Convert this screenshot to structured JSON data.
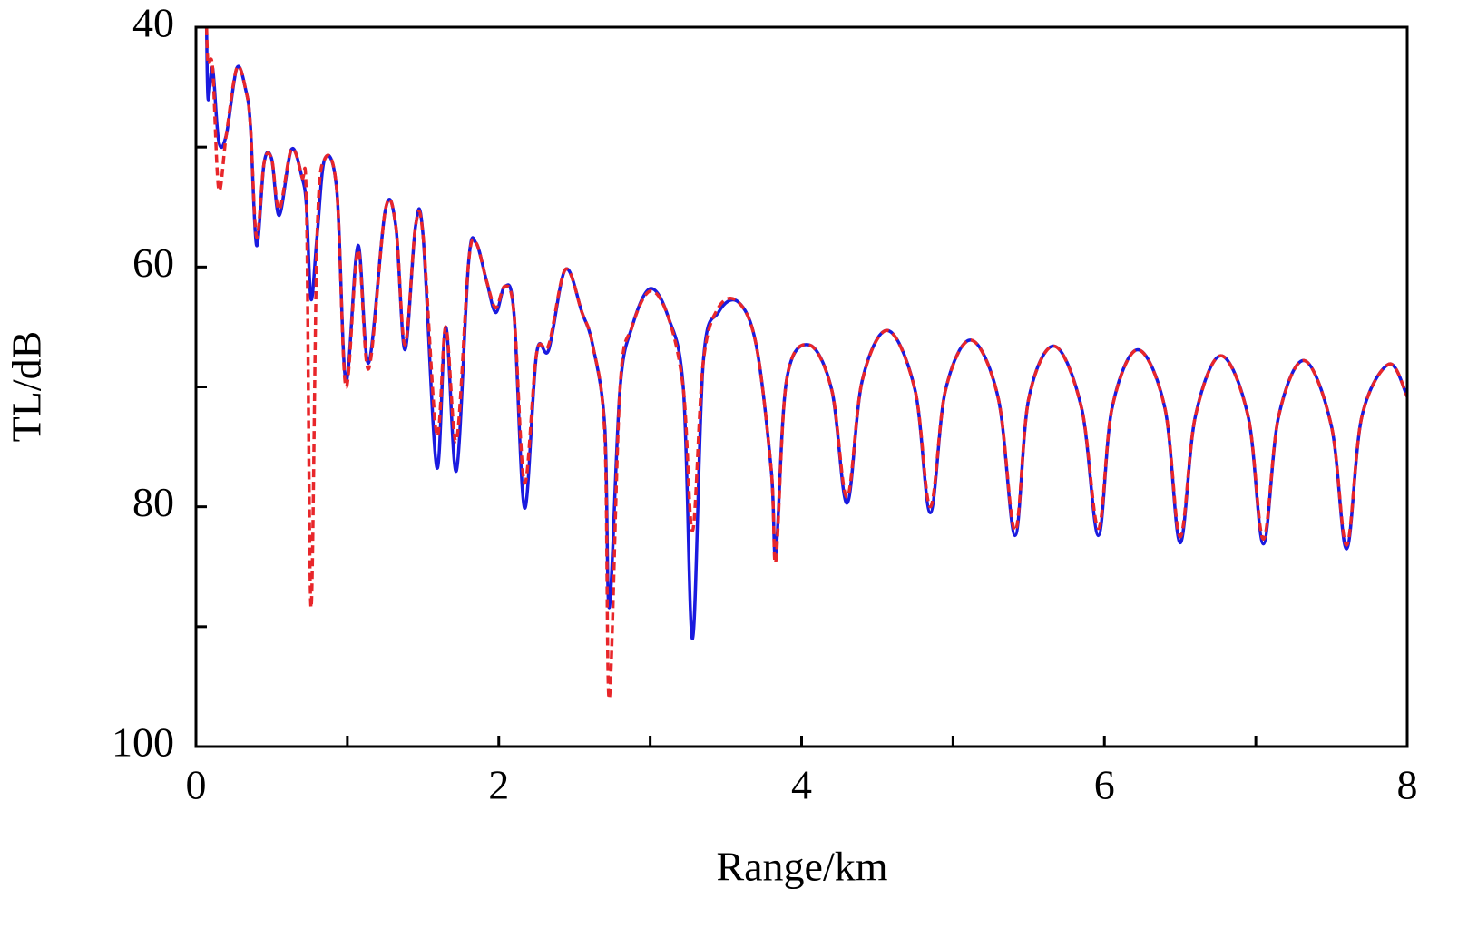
{
  "chart_data": {
    "type": "line",
    "xlabel": "Range/km",
    "ylabel": "TL/dB",
    "x": [
      0.07,
      0.08,
      0.11,
      0.15,
      0.2,
      0.27,
      0.33,
      0.36,
      0.4,
      0.45,
      0.5,
      0.55,
      0.63,
      0.7,
      0.73,
      0.76,
      0.8,
      0.85,
      0.93,
      0.99,
      1.07,
      1.14,
      1.25,
      1.32,
      1.38,
      1.45,
      1.5,
      1.59,
      1.65,
      1.72,
      1.8,
      1.85,
      1.92,
      1.98,
      2.04,
      2.1,
      2.17,
      2.25,
      2.33,
      2.44,
      2.55,
      2.62,
      2.7,
      2.73,
      2.8,
      2.88,
      3.0,
      3.12,
      3.22,
      3.28,
      3.35,
      3.45,
      3.58,
      3.7,
      3.8,
      3.83,
      3.9,
      4.05,
      4.2,
      4.3,
      4.4,
      4.57,
      4.75,
      4.85,
      4.95,
      5.12,
      5.3,
      5.41,
      5.5,
      5.67,
      5.85,
      5.96,
      6.05,
      6.22,
      6.4,
      6.5,
      6.6,
      6.77,
      6.95,
      7.05,
      7.15,
      7.32,
      7.5,
      7.6,
      7.7,
      7.88,
      8.0
    ],
    "series": [
      {
        "color": "#1a1adf",
        "dash": false,
        "values": [
          40,
          46,
          43.4,
          49.5,
          49,
          43.4,
          45.3,
          48.3,
          58.2,
          51.3,
          51,
          55.7,
          50.2,
          52.5,
          55,
          62.7,
          57.4,
          51,
          53.6,
          69.5,
          58.2,
          68,
          55.3,
          56.6,
          66.9,
          56.6,
          57.4,
          76.7,
          65,
          77,
          59.7,
          58,
          61.2,
          63.8,
          61.6,
          63.8,
          80.1,
          67.2,
          66.9,
          60.2,
          63.8,
          66.5,
          73.3,
          88.4,
          70.3,
          65,
          61.8,
          64.2,
          70.3,
          91,
          68,
          63.8,
          62.9,
          66.5,
          77,
          83.9,
          69.5,
          66.5,
          70.3,
          79.7,
          69.5,
          65.3,
          70.3,
          80.5,
          70.3,
          66.1,
          71,
          82.4,
          71,
          66.6,
          71.8,
          82.4,
          71.8,
          66.9,
          71.8,
          83,
          72.5,
          67.4,
          72.5,
          83.1,
          72.5,
          67.8,
          73.3,
          83.5,
          72.5,
          68.1,
          70.8
        ]
      },
      {
        "color": "#e8262a",
        "dash": true,
        "values": [
          40,
          43,
          43.4,
          53.5,
          49,
          43.4,
          45.3,
          48.3,
          57.5,
          51.3,
          51,
          55.2,
          50.2,
          52.5,
          55,
          88.4,
          57.4,
          51,
          53.6,
          70,
          58.6,
          68.5,
          55.3,
          56.6,
          66.5,
          56.6,
          57.4,
          74,
          65,
          74.5,
          59.7,
          58,
          61.2,
          63.4,
          61.6,
          63.8,
          78,
          67.2,
          66.5,
          60.2,
          63.8,
          66.5,
          74,
          96,
          70.3,
          65,
          62,
          64.2,
          70.3,
          82,
          68,
          63.4,
          62.9,
          66.5,
          77,
          84.5,
          69.5,
          66.5,
          70.3,
          79.2,
          69.5,
          65.3,
          70.3,
          80,
          70.3,
          66.1,
          71,
          82,
          71,
          66.6,
          71.8,
          81.8,
          71.8,
          66.9,
          71.8,
          82.5,
          72.5,
          67.4,
          72.5,
          82.7,
          72.5,
          67.8,
          73.3,
          83.2,
          72.5,
          68.1,
          70.8
        ]
      }
    ],
    "xlim": [
      0,
      8
    ],
    "xticks": [
      0,
      2,
      4,
      6,
      8
    ],
    "xminor": [
      1,
      3,
      5,
      7
    ],
    "ylim": [
      100,
      40
    ],
    "yticks": [
      40,
      60,
      80,
      100
    ],
    "yminor": [
      50,
      70,
      90
    ],
    "grid": false
  }
}
